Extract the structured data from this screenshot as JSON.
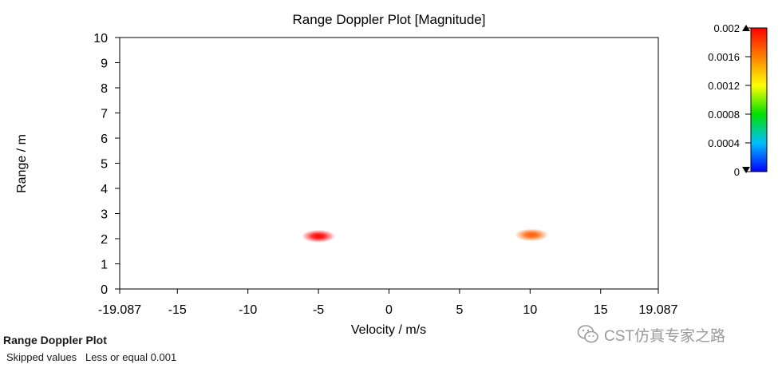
{
  "chart_data": {
    "type": "heatmap",
    "title": "Range Doppler Plot [Magnitude]",
    "xlabel": "Velocity / m/s",
    "ylabel": "Range / m",
    "xlim": [
      -19.087,
      19.087
    ],
    "ylim": [
      0,
      10
    ],
    "x_ticks": [
      -19.087,
      -15,
      -10,
      -5,
      0,
      5,
      10,
      15,
      19.087
    ],
    "x_tick_labels": [
      "-19.087",
      "-15",
      "-10",
      "-5",
      "0",
      "5",
      "10",
      "15",
      "19.087"
    ],
    "y_ticks": [
      0,
      1,
      2,
      3,
      4,
      5,
      6,
      7,
      8,
      9,
      10
    ],
    "y_tick_labels": [
      "0",
      "1",
      "2",
      "3",
      "4",
      "5",
      "6",
      "7",
      "8",
      "9",
      "10"
    ],
    "grid": false,
    "colorbar": {
      "min": 0,
      "max": 0.002,
      "ticks": [
        0,
        0.0004,
        0.0008,
        0.0012,
        0.0016,
        0.002
      ],
      "tick_labels": [
        "0",
        "0.0004",
        "0.0008",
        "0.0012",
        "0.0016",
        "0.002"
      ],
      "colors": [
        "#0000ff",
        "#00c0ff",
        "#00e000",
        "#ffff00",
        "#ff8000",
        "#ff0000"
      ],
      "placement": "right"
    },
    "points": [
      {
        "velocity": -5,
        "range": 2.1,
        "magnitude": 0.002
      },
      {
        "velocity": 10.1,
        "range": 2.15,
        "magnitude": 0.0017
      }
    ]
  },
  "footer": {
    "title": "Range Doppler Plot",
    "note": "Skipped values   Less or equal 0.001"
  },
  "watermark": {
    "text": "CST仿真专家之路",
    "icon": "wechat-icon"
  }
}
